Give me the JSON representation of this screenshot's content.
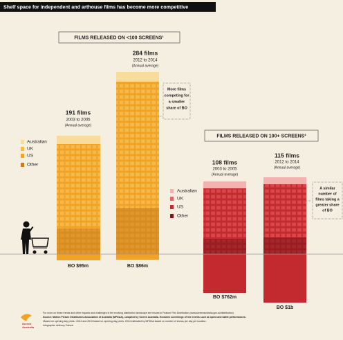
{
  "title": "Shelf space for independent and arthouse films has become more competitive",
  "panels": [
    {
      "heading": "FILMS RELEASED ON <100 SCREENS¹",
      "legend": [
        "Australian",
        "UK",
        "US",
        "Other"
      ],
      "groups": [
        {
          "count": "191 films",
          "period": "2003 to 2005",
          "note": "(Annual average)",
          "box_office": "BO $95m"
        },
        {
          "count": "284 films",
          "period": "2012 to 2014",
          "note": "(Annual average)",
          "box_office": "BO $86m"
        }
      ],
      "callout": [
        "More films",
        "competing for",
        "a smaller",
        "share of BO"
      ]
    },
    {
      "heading": "FILMS RELEASED ON 100+ SCREENS²",
      "legend": [
        "Australian",
        "UK",
        "US",
        "Other"
      ],
      "groups": [
        {
          "count": "108 films",
          "period": "2003 to 2005",
          "note": "(Annual average)",
          "box_office": "BO $762m"
        },
        {
          "count": "115 films",
          "period": "2012 to 2014",
          "note": "(Annual average)",
          "box_office": "BO $1b"
        }
      ],
      "callout": [
        "A similar",
        "number of",
        "films taking a",
        "greater share",
        "of BO"
      ]
    }
  ],
  "footer": {
    "logo": [
      "Screen",
      "Australia"
    ],
    "lines": [
      "For more on these trends and other impacts and challenges in the evolving distribution landscape see Issues in Feature Film Distribution (www.screenaustralia.gov.au/distribution)",
      "Source: Motion Picture Distributors Association of Australia (MPDAA), compiled by Screen Australia. Excludes screenings of live events such as opera and ballet performances.",
      "¹Based on opening day prints. ²2012 and 2013 based on opening day prints. 2014 estimated by MPDAA based on number of shows per day per location.",
      "Infographic: Anthony Calvert"
    ]
  }
}
